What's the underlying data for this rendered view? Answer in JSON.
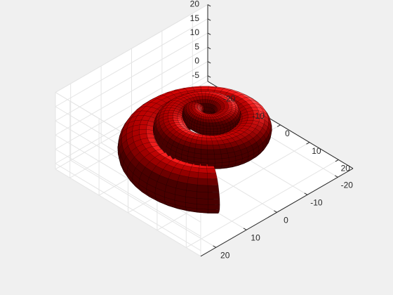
{
  "chart_data": {
    "type": "surface",
    "shape": "spiral tube (coiled surface)",
    "title": "",
    "xlabel": "",
    "ylabel": "",
    "zlabel": "",
    "xlim": [
      -25,
      25
    ],
    "ylim": [
      -25,
      25
    ],
    "zlim": [
      -7,
      20
    ],
    "x_ticks": [
      "-20",
      "-10",
      "0",
      "10",
      "20"
    ],
    "y_ticks": [
      "-20",
      "-10",
      "0",
      "10",
      "20"
    ],
    "z_ticks": [
      "-5",
      "0",
      "5",
      "10",
      "15",
      "20"
    ],
    "grid": true,
    "box": false,
    "view": "3-D",
    "coil": {
      "turns": [
        {
          "center_radius": 16.5,
          "tube_radius": 6.5,
          "z_center": 0
        },
        {
          "center_radius": 9.5,
          "tube_radius": 4.5,
          "z_center": 7
        },
        {
          "center_radius": 4.0,
          "tube_radius": 3.0,
          "z_center": 12
        }
      ]
    },
    "colors": {
      "surface": "#e60000",
      "edge": "#000000",
      "pane": "#ffffff",
      "grid": "#e4e4e4",
      "axis": "#262626",
      "figure_bg": "#f0f0f0"
    }
  }
}
